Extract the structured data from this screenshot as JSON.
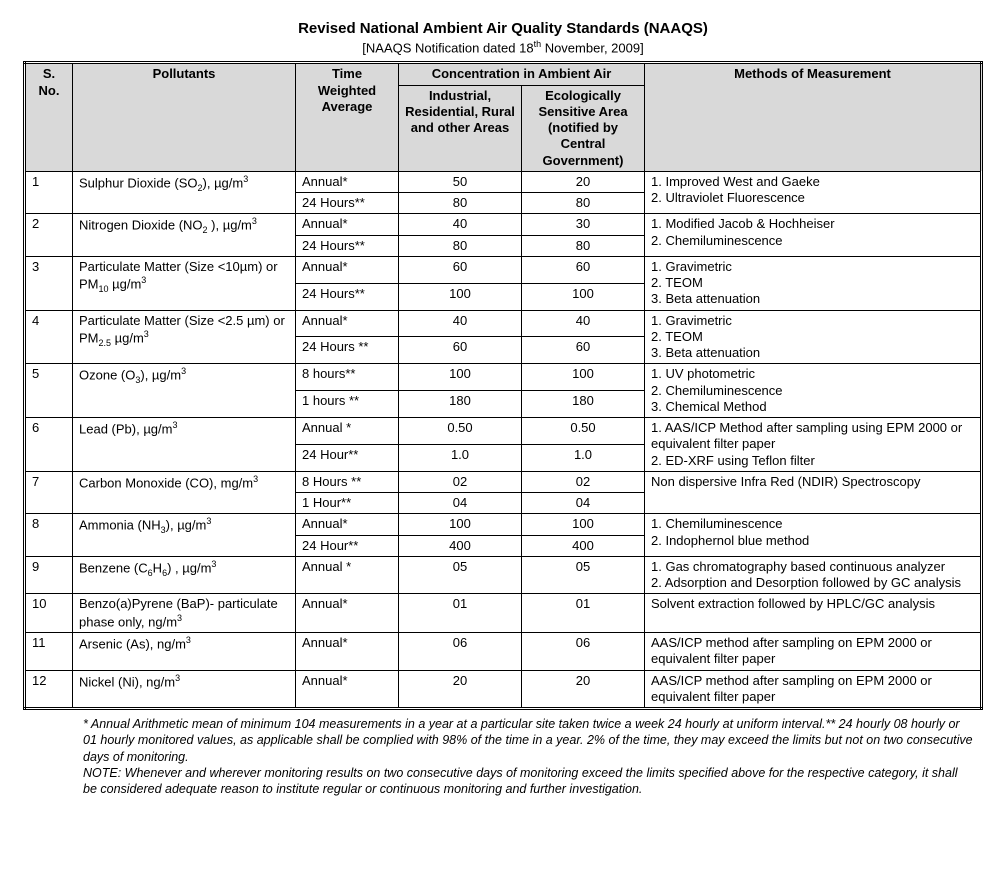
{
  "title": "Revised National Ambient Air Quality Standards (NAAQS)",
  "subtitle_pre": "[NAAQS Notification dated 18",
  "subtitle_sup": "th",
  "subtitle_post": " November, 2009]",
  "headers": {
    "sno": "S. No.",
    "pollutants": "Pollutants",
    "twa": "Time Weighted Average",
    "conc_span": "Concentration in Ambient Air",
    "conc_a": "Industrial, Residential, Rural and other Areas",
    "conc_b": "Ecologically Sensitive Area (notified by Central Government)",
    "methods": "Methods of Measurement"
  },
  "rows": [
    {
      "sno": "1",
      "poll_html": "Sulphur Dioxide (SO<sub>2</sub>), µg/m<sup>3</sup>",
      "twa": [
        "Annual*",
        "24 Hours**"
      ],
      "a": [
        "50",
        "80"
      ],
      "b": [
        "20",
        "80"
      ],
      "meth": "1. Improved West and Gaeke<br>2. Ultraviolet Fluorescence"
    },
    {
      "sno": "2",
      "poll_html": "Nitrogen Dioxide (NO<sub>2</sub> ), µg/m<sup>3</sup>",
      "twa": [
        "Annual*",
        "24 Hours**"
      ],
      "a": [
        "40",
        "80"
      ],
      "b": [
        "30",
        "80"
      ],
      "meth": "1. Modified  Jacob & Hochheiser<br>2. Chemiluminescence"
    },
    {
      "sno": "3",
      "poll_html": "Particulate Matter (Size &lt;10µm) or PM<sub>10</sub> µg/m<sup>3</sup>",
      "twa": [
        "Annual*",
        "24 Hours**"
      ],
      "a": [
        "60",
        "100"
      ],
      "b": [
        "60",
        "100"
      ],
      "meth": "1.  Gravimetric<br>2.  TEOM<br>3.  Beta attenuation"
    },
    {
      "sno": "4",
      "poll_html": "Particulate Matter (Size &lt;2.5 µm) or  PM<sub>2.5</sub> µg/m<sup>3</sup>",
      "twa": [
        "Annual*",
        "24 Hours **"
      ],
      "a": [
        "40",
        "60"
      ],
      "b": [
        "40",
        "60"
      ],
      "meth": "1.   Gravimetric<br>2.   TEOM<br>3.   Beta attenuation"
    },
    {
      "sno": "5",
      "poll_html": "Ozone (O<sub>3</sub>), µg/m<sup>3</sup>",
      "twa": [
        "8 hours**",
        "1 hours **"
      ],
      "a": [
        "100",
        "180"
      ],
      "b": [
        "100",
        "180"
      ],
      "meth": "1.   UV photometric<br>2.   Chemiluminescence<br>3.   Chemical Method"
    },
    {
      "sno": "6",
      "poll_html": "Lead (Pb), µg/m<sup>3</sup>",
      "twa": [
        "Annual *",
        "24 Hour**"
      ],
      "a": [
        "0.50",
        "1.0"
      ],
      "b": [
        "0.50",
        "1.0"
      ],
      "meth": "1. AAS/ICP  Method after  sampling using EPM 2000 or equivalent filter paper<br>2. ED-XRF using Teflon filter"
    },
    {
      "sno": "7",
      "poll_html": "Carbon Monoxide (CO), mg/m<sup>3</sup>",
      "twa": [
        "8 Hours **",
        "1 Hour**"
      ],
      "a": [
        "02",
        "04"
      ],
      "b": [
        "02",
        "04"
      ],
      "meth": "Non dispersive Infra Red (NDIR) Spectroscopy"
    },
    {
      "sno": "8",
      "poll_html": "Ammonia (NH<sub>3</sub>), µg/m<sup>3</sup>",
      "twa": [
        "Annual*",
        "24 Hour**"
      ],
      "a": [
        "100",
        "400"
      ],
      "b": [
        "100",
        "400"
      ],
      "meth": "1.  Chemiluminescence<br>2.  Indophernol blue method"
    },
    {
      "sno": "9",
      "poll_html": "Benzene (C<sub>6</sub>H<sub>6</sub>) , µg/m<sup>3</sup>",
      "twa": [
        "Annual *"
      ],
      "a": [
        "05"
      ],
      "b": [
        "05"
      ],
      "meth": "1.  Gas chromatography based continuous analyzer<br>2.  Adsorption and Desorption followed by GC analysis"
    },
    {
      "sno": "10",
      "poll_html": "Benzo(a)Pyrene (BaP)- particulate phase only, ng/m<sup>3</sup>",
      "twa": [
        "Annual*"
      ],
      "a": [
        "01"
      ],
      "b": [
        "01"
      ],
      "meth": "Solvent extraction followed by HPLC/GC analysis"
    },
    {
      "sno": "11",
      "poll_html": "Arsenic (As), ng/m<sup>3</sup>",
      "twa": [
        "Annual*"
      ],
      "a": [
        "06"
      ],
      "b": [
        "06"
      ],
      "meth": "AAS/ICP method after sampling on EPM 2000 or equivalent filter paper"
    },
    {
      "sno": "12",
      "poll_html": "Nickel (Ni), ng/m<sup>3</sup>",
      "twa": [
        "Annual*"
      ],
      "a": [
        "20"
      ],
      "b": [
        "20"
      ],
      "meth": "AAS/ICP method after sampling on EPM 2000 or equivalent filter paper"
    }
  ],
  "footnotes": "* Annual Arithmetic mean of minimum 104 measurements in a year at a particular site taken twice a week 24 hourly at uniform interval.**  24 hourly 08 hourly or 01 hourly monitored values, as applicable shall be complied with 98% of the time in a year. 2% of the time, they may exceed the limits but not on two consecutive days of monitoring.\nNOTE: Whenever and wherever monitoring results on two consecutive days of monitoring exceed the limits specified above for the respective category, it shall be considered adequate reason to institute regular or continuous monitoring and further investigation."
}
